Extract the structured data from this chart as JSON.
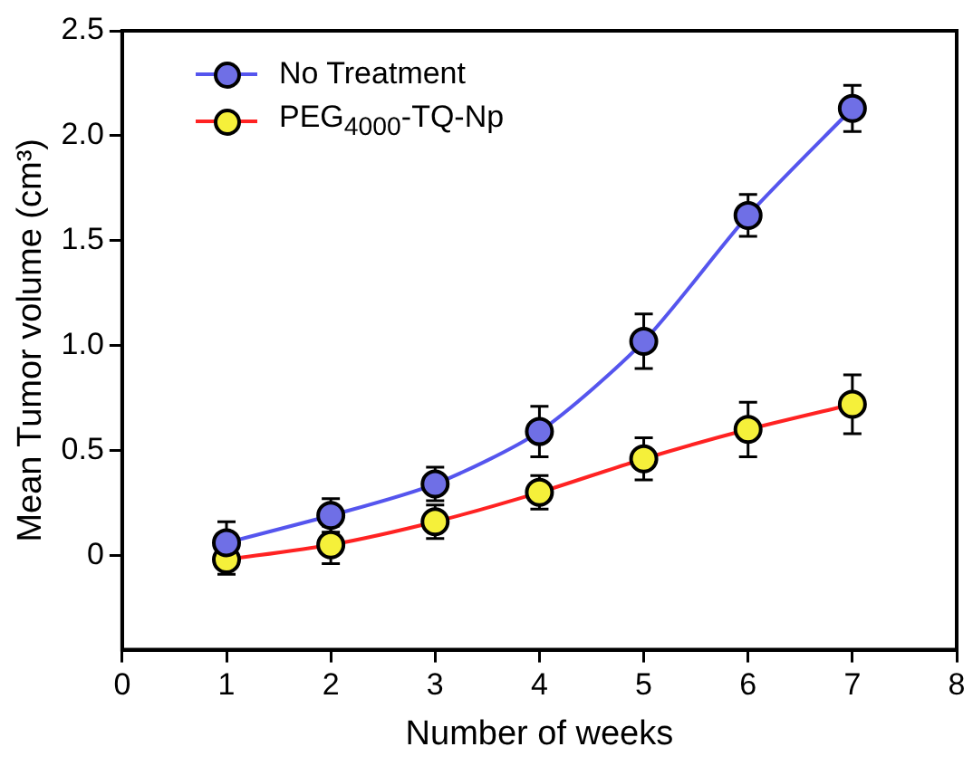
{
  "chart_data": {
    "type": "line",
    "xlabel": "Number of weeks",
    "ylabel": "Mean Tumor volume (cm³)",
    "x": [
      1,
      2,
      3,
      4,
      5,
      6,
      7
    ],
    "series": [
      {
        "name": "No Treatment",
        "color": "#5555ee",
        "values": [
          0.06,
          0.19,
          0.34,
          0.59,
          1.02,
          1.62,
          2.13
        ],
        "errors": [
          0.1,
          0.08,
          0.08,
          0.12,
          0.13,
          0.1,
          0.11
        ]
      },
      {
        "name": "PEG$_{4000}$-TQ-Np",
        "color": "#ff2222",
        "values": [
          -0.02,
          0.05,
          0.16,
          0.3,
          0.46,
          0.6,
          0.72
        ],
        "errors": [
          0.07,
          0.09,
          0.08,
          0.08,
          0.1,
          0.13,
          0.14
        ]
      }
    ],
    "xlim": [
      0,
      8
    ],
    "xticks": [
      0,
      1,
      2,
      3,
      4,
      5,
      6,
      7,
      8
    ],
    "ylim": [
      -0.45,
      2.5
    ],
    "yticks": [
      0,
      0.5,
      {
        "value": 1,
        "label": "1.0"
      },
      1.5,
      {
        "value": 2,
        "label": "2.0"
      },
      2.5
    ],
    "grid": false,
    "legend": "top left",
    "marker": "circle",
    "line_style": "solid"
  }
}
